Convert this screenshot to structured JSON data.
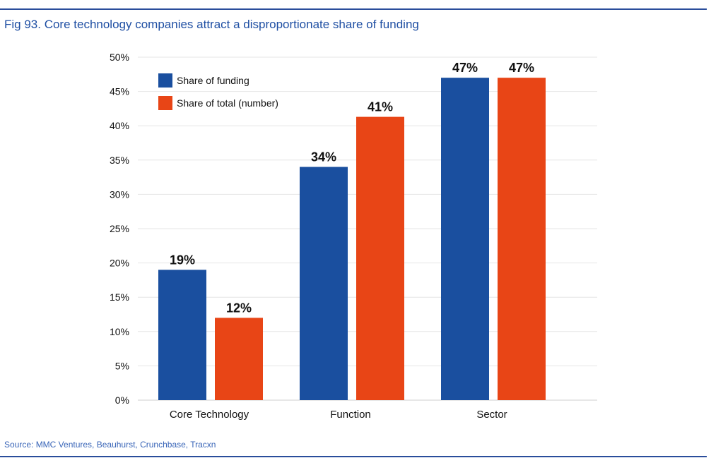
{
  "figure": {
    "title": "Fig 93. Core technology companies attract a disproportionate share of funding",
    "source": "Source: MMC Ventures, Beauhurst, Crunchbase, Tracxn"
  },
  "colors": {
    "funding": "#1a4f9f",
    "total": "#e84516",
    "rule": "#2a4d9b",
    "title": "#1f4fa3",
    "grid": "#e6e6e6"
  },
  "chart_data": {
    "type": "bar",
    "title": "Fig 93. Core technology companies attract a disproportionate share of funding",
    "xlabel": "",
    "ylabel": "",
    "ylim": [
      0,
      50
    ],
    "yticks": [
      0,
      5,
      10,
      15,
      20,
      25,
      30,
      35,
      40,
      45,
      50
    ],
    "ytick_labels": [
      "0%",
      "5%",
      "10%",
      "15%",
      "20%",
      "25%",
      "30%",
      "35%",
      "40%",
      "45%",
      "50%"
    ],
    "grid": true,
    "legend_position": "top-left",
    "categories": [
      "Core Technology",
      "Function",
      "Sector"
    ],
    "series": [
      {
        "name": "Share of funding",
        "values": [
          19,
          34,
          47
        ],
        "labels": [
          "19%",
          "34%",
          "47%"
        ]
      },
      {
        "name": "Share of total (number)",
        "values": [
          12,
          41.3,
          47
        ],
        "labels": [
          "12%",
          "41%",
          "47%"
        ]
      }
    ]
  }
}
